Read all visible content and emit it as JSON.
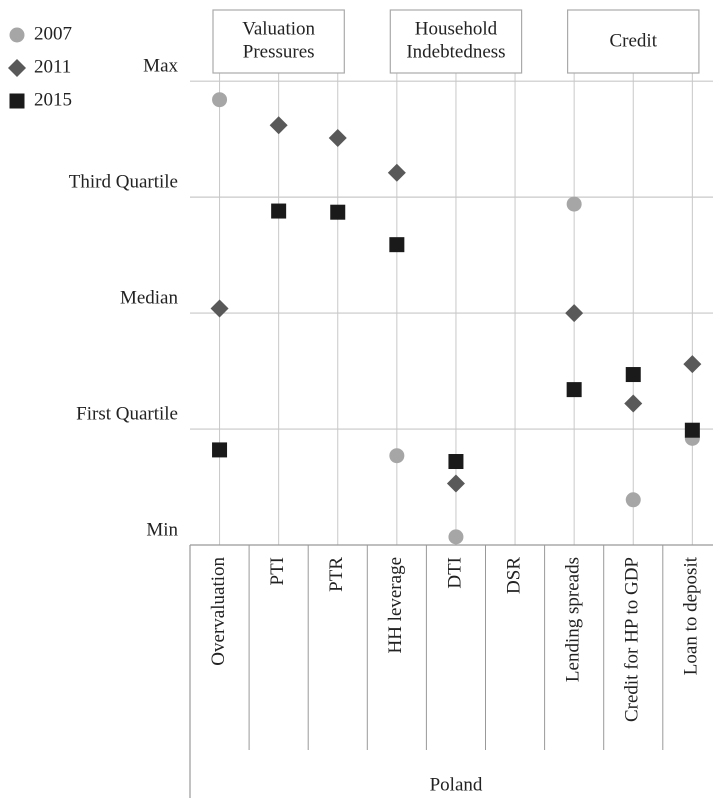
{
  "chart_data": {
    "type": "scatter",
    "groups": [
      {
        "label": "Valuation Pressures",
        "span": [
          0,
          2
        ]
      },
      {
        "label": "Household Indebtedness",
        "span": [
          3,
          5
        ]
      },
      {
        "label": "Credit",
        "span": [
          6,
          8
        ]
      }
    ],
    "country": "Poland",
    "categories": [
      "Overvaluation",
      "PTI",
      "PTR",
      "HH leverage",
      "DTI",
      "DSR",
      "Lending spreads",
      "Credit for HP to GDP",
      "Loan to deposit"
    ],
    "series": [
      {
        "name": "2007",
        "color": "#a6a6a6",
        "marker": "circle",
        "values": [
          3.84,
          null,
          null,
          0.77,
          0.07,
          null,
          2.94,
          0.39,
          0.92
        ]
      },
      {
        "name": "2011",
        "color": "#595959",
        "marker": "diamond",
        "values": [
          2.04,
          3.62,
          3.51,
          3.21,
          0.53,
          null,
          2.0,
          1.22,
          1.56
        ]
      },
      {
        "name": "2015",
        "color": "#1a1a1a",
        "marker": "square",
        "values": [
          0.82,
          2.88,
          2.87,
          2.59,
          0.72,
          null,
          1.34,
          1.47,
          0.99
        ]
      }
    ],
    "ylim": [
      0,
      4.7
    ],
    "yticks": [
      {
        "value": 0,
        "label": "Min"
      },
      {
        "value": 1,
        "label": "First Quartile"
      },
      {
        "value": 2,
        "label": "Median"
      },
      {
        "value": 3,
        "label": "Third Quartile"
      },
      {
        "value": 4,
        "label": "Max"
      }
    ],
    "grid": true
  }
}
